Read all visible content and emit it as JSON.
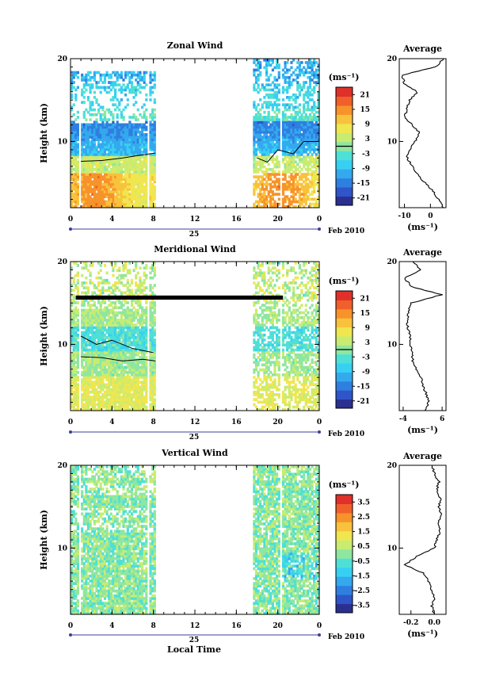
{
  "date_label": "Feb 2010",
  "day_label": "25",
  "xlabel_bottom": "Local Time",
  "colorscale": [
    "#2b2f8f",
    "#2f55c8",
    "#2f7fe0",
    "#34a9ee",
    "#38d0f2",
    "#4ee0d6",
    "#8fe6a0",
    "#c8ec72",
    "#f0e650",
    "#f9c23c",
    "#f7932b",
    "#f0602a",
    "#e0302a"
  ],
  "chart_data": [
    {
      "type": "heatmap",
      "title": "Zonal Wind",
      "ylabel": "Height (km)",
      "xlabel": "",
      "x_ticks": [
        "0",
        "4",
        "8",
        "12",
        "16",
        "20",
        "0"
      ],
      "y_ticks": [
        "10",
        "20"
      ],
      "xlim": [
        0,
        24
      ],
      "ylim": [
        2,
        20
      ],
      "colorbar": {
        "unit": "(ms⁻¹)",
        "ticks": [
          "21",
          "15",
          "9",
          "3",
          "-3",
          "-9",
          "-15",
          "-21"
        ],
        "range": [
          -24,
          24
        ],
        "zero_line": 3
      },
      "average_profile": {
        "title": "Average",
        "xlabel": "(ms⁻¹)",
        "x_ticks": [
          "-10",
          "0"
        ],
        "y_ticks": [
          "10",
          "20"
        ],
        "xlim": [
          -12,
          6
        ],
        "height": [
          2,
          3,
          4,
          5,
          6,
          7,
          8,
          9,
          10,
          11,
          12,
          13,
          14,
          15,
          16,
          17,
          18,
          19,
          20
        ],
        "value": [
          5,
          3,
          1,
          -2,
          -5,
          -7,
          -9,
          -8,
          -6,
          -4,
          -7,
          -10,
          -9,
          -8,
          -5,
          -10,
          -11,
          2,
          5
        ]
      }
    },
    {
      "type": "heatmap",
      "title": "Meridional Wind",
      "ylabel": "Height (km)",
      "xlabel": "",
      "x_ticks": [
        "0",
        "4",
        "8",
        "12",
        "16",
        "20",
        "0"
      ],
      "y_ticks": [
        "10",
        "20"
      ],
      "xlim": [
        0,
        24
      ],
      "ylim": [
        2,
        20
      ],
      "colorbar": {
        "unit": "(ms⁻¹)",
        "ticks": [
          "21",
          "15",
          "9",
          "3",
          "-3",
          "-9",
          "-15",
          "-21"
        ],
        "range": [
          -24,
          24
        ],
        "zero_line": 3
      },
      "average_profile": {
        "title": "Average",
        "xlabel": "(ms⁻¹)",
        "x_ticks": [
          "-4",
          "6"
        ],
        "y_ticks": [
          "10",
          "20"
        ],
        "xlim": [
          -5,
          7
        ],
        "height": [
          2,
          3,
          4,
          5,
          6,
          7,
          8,
          9,
          10,
          11,
          12,
          13,
          14,
          15,
          16,
          17,
          18,
          19,
          20
        ],
        "value": [
          1.5,
          2.5,
          2.0,
          1.0,
          0.5,
          -0.5,
          -1.5,
          -1.8,
          -2.0,
          -2.2,
          -2.8,
          -3.0,
          -2.5,
          -2.0,
          6.0,
          -2.0,
          -3.5,
          0.5,
          -1.5
        ]
      }
    },
    {
      "type": "heatmap",
      "title": "Vertical Wind",
      "ylabel": "Height (km)",
      "xlabel": "Local Time",
      "x_ticks": [
        "0",
        "4",
        "8",
        "12",
        "16",
        "20",
        "0"
      ],
      "y_ticks": [
        "10",
        "20"
      ],
      "xlim": [
        0,
        24
      ],
      "ylim": [
        2,
        20
      ],
      "colorbar": {
        "unit": "(ms⁻¹)",
        "ticks": [
          "3.5",
          "2.5",
          "1.5",
          "0.5",
          "-0.5",
          "-1.5",
          "-2.5",
          "-3.5"
        ],
        "range": [
          -4,
          4
        ]
      },
      "average_profile": {
        "title": "Average",
        "xlabel": "(ms⁻¹)",
        "x_ticks": [
          "-0.2",
          "0.0"
        ],
        "y_ticks": [
          "10",
          "20"
        ],
        "xlim": [
          -0.3,
          0.1
        ],
        "height": [
          2,
          3,
          4,
          5,
          6,
          7,
          8,
          9,
          10,
          11,
          12,
          13,
          14,
          15,
          16,
          17,
          18,
          19,
          20
        ],
        "value": [
          0.0,
          -0.02,
          0.0,
          -0.03,
          -0.05,
          -0.1,
          -0.25,
          -0.15,
          0.0,
          0.02,
          0.05,
          0.03,
          0.06,
          0.04,
          0.05,
          0.02,
          0.04,
          0.0,
          -0.02
        ]
      }
    }
  ]
}
